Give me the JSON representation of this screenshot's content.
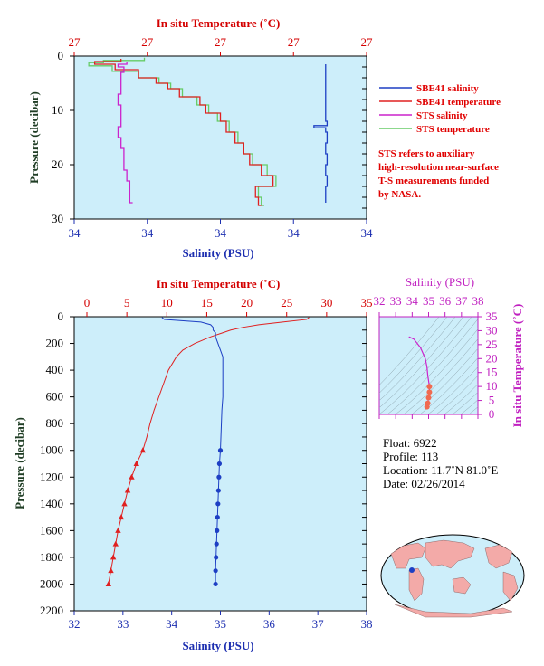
{
  "colors": {
    "plot_bg": "#cdeefa",
    "sbe_salinity": "#1d3fc4",
    "sbe_temperature": "#e02020",
    "sts_salinity": "#cc22cc",
    "sts_temperature": "#66cc66",
    "temp_axis": "#d40000",
    "sal_axis": "#1d2fb0",
    "pressure_axis": "#1f3d24",
    "ts_axis": "#c020c0"
  },
  "top_panel": {
    "temp_axis_label": "In situ Temperature (˚C)",
    "sal_axis_label": "Salinity (PSU)",
    "pressure_axis_label": "Pressure (decibar)",
    "temp_ticks": [
      "27",
      "27",
      "27",
      "27",
      "27"
    ],
    "sal_ticks": [
      "34",
      "34",
      "34",
      "34",
      "34"
    ],
    "pressure_ticks": [
      "0",
      "10",
      "20",
      "30"
    ],
    "legend": [
      {
        "label": "SBE41 salinity",
        "color": "#1d3fc4"
      },
      {
        "label": "SBE41 temperature",
        "color": "#e02020"
      },
      {
        "label": "STS salinity",
        "color": "#cc22cc"
      },
      {
        "label": "STS temperature",
        "color": "#66cc66"
      }
    ],
    "note_lines": [
      "STS refers to auxiliary",
      "high-resolution near-surface",
      "T-S measurements funded",
      "by NASA."
    ]
  },
  "bottom_panel": {
    "temp_axis_label": "In situ Temperature (˚C)",
    "sal_axis_label": "Salinity (PSU)",
    "pressure_axis_label": "Pressure (decibar)",
    "temp_ticks": [
      "0",
      "5",
      "10",
      "15",
      "20",
      "25",
      "30",
      "35"
    ],
    "sal_ticks": [
      "32",
      "33",
      "34",
      "35",
      "36",
      "37",
      "38"
    ],
    "pressure_ticks": [
      "0",
      "200",
      "400",
      "600",
      "800",
      "1000",
      "1200",
      "1400",
      "1600",
      "1800",
      "2000",
      "2200"
    ]
  },
  "ts_panel": {
    "sal_axis_label": "Salinity (PSU)",
    "temp_axis_label": "In situ Temperature (˚C)",
    "sal_ticks": [
      "32",
      "33",
      "34",
      "35",
      "36",
      "37",
      "38"
    ],
    "temp_ticks": [
      "0",
      "5",
      "10",
      "15",
      "20",
      "25",
      "30",
      "35"
    ]
  },
  "float_info": {
    "float": "Float:  6922",
    "profile": "Profile:  113",
    "location": "Location:  11.7˚N  81.0˚E",
    "date": "Date:  02/26/2014"
  },
  "chart_data": [
    {
      "type": "line",
      "panel": "near-surface profile",
      "xlabel_top": "In situ Temperature (˚C)",
      "xlabel_bottom": "Salinity (PSU)",
      "ylabel": "Pressure (decibar)",
      "ylim": [
        30,
        0
      ],
      "series": [
        {
          "name": "SBE41 salinity",
          "pressure": [
            1.5,
            4,
            6,
            8,
            10,
            12,
            12.8,
            13.2,
            14,
            16,
            18,
            20,
            22,
            24,
            26,
            27
          ],
          "frac": [
            0.86,
            0.86,
            0.86,
            0.86,
            0.86,
            0.865,
            0.82,
            0.86,
            0.865,
            0.86,
            0.865,
            0.86,
            0.865,
            0.86,
            0.86,
            0.86
          ]
        },
        {
          "name": "SBE41 temperature",
          "pressure": [
            0.5,
            1.0,
            1.5,
            2.5,
            4.0,
            5.0,
            6.0,
            7.5,
            9.0,
            10.5,
            12.0,
            14.0,
            16.0,
            18.0,
            20.0,
            22.0,
            24.0,
            26.0,
            27.5
          ],
          "frac": [
            0.16,
            0.07,
            0.14,
            0.22,
            0.28,
            0.32,
            0.36,
            0.43,
            0.45,
            0.5,
            0.52,
            0.55,
            0.58,
            0.6,
            0.64,
            0.68,
            0.62,
            0.63,
            0.64
          ]
        },
        {
          "name": "STS salinity",
          "pressure": [
            1.0,
            1.5,
            2.0,
            3.0,
            5.0,
            7.0,
            9.0,
            11.0,
            13.0,
            15.0,
            17.0,
            19.0,
            21.0,
            23.0,
            25.0,
            27.0
          ],
          "frac": [
            0.18,
            0.15,
            0.17,
            0.16,
            0.16,
            0.15,
            0.16,
            0.16,
            0.15,
            0.16,
            0.17,
            0.17,
            0.18,
            0.19,
            0.19,
            0.2
          ]
        },
        {
          "name": "STS temperature",
          "pressure": [
            0.3,
            0.8,
            1.2,
            1.8,
            2.8,
            4.0,
            5.0,
            6.0,
            7.5,
            9.0,
            10.5,
            12.0,
            14.0,
            16.0,
            18.0,
            20.0,
            22.0,
            24.0,
            26.0,
            27.5
          ],
          "frac": [
            0.24,
            0.1,
            0.05,
            0.13,
            0.22,
            0.29,
            0.33,
            0.37,
            0.42,
            0.46,
            0.49,
            0.53,
            0.56,
            0.58,
            0.61,
            0.66,
            0.69,
            0.63,
            0.64,
            0.65
          ]
        }
      ]
    },
    {
      "type": "line",
      "panel": "full-depth profile",
      "xlabel_top": "In situ Temperature (˚C)",
      "xlabel_bottom": "Salinity (PSU)",
      "ylabel": "Pressure (decibar)",
      "xlim_temperature": [
        0,
        35
      ],
      "xlim_salinity": [
        32,
        38
      ],
      "ylim": [
        2200,
        0
      ],
      "series": [
        {
          "name": "In situ temperature",
          "pressure": [
            5,
            20,
            40,
            60,
            80,
            100,
            120,
            150,
            200,
            250,
            300,
            400,
            500,
            600,
            700,
            800,
            900,
            1000,
            1100,
            1200,
            1300,
            1400,
            1500,
            1600,
            1700,
            1800,
            1900,
            2000
          ],
          "values": [
            27.8,
            27.5,
            24.5,
            21.5,
            19.5,
            18.0,
            17.0,
            15.5,
            13.5,
            12.0,
            11.2,
            10.2,
            9.6,
            9.0,
            8.4,
            7.9,
            7.5,
            7.0,
            6.2,
            5.6,
            5.1,
            4.7,
            4.3,
            3.9,
            3.6,
            3.3,
            3.0,
            2.7
          ]
        },
        {
          "name": "Salinity",
          "pressure": [
            5,
            20,
            40,
            60,
            80,
            100,
            120,
            150,
            200,
            250,
            300,
            400,
            500,
            600,
            700,
            800,
            900,
            1000,
            1100,
            1200,
            1300,
            1400,
            1500,
            1600,
            1700,
            1800,
            1900,
            2000
          ],
          "values": [
            33.8,
            33.85,
            34.6,
            34.8,
            34.85,
            34.85,
            34.9,
            34.9,
            34.95,
            35.0,
            35.05,
            35.05,
            35.05,
            35.05,
            35.03,
            35.02,
            35.01,
            35.0,
            34.98,
            34.97,
            34.96,
            34.95,
            34.94,
            34.93,
            34.92,
            34.91,
            34.9,
            34.9
          ]
        }
      ]
    },
    {
      "type": "scatter",
      "panel": "T-S diagram",
      "xlabel": "Salinity (PSU)",
      "ylabel": "In situ Temperature (˚C)",
      "xlim": [
        32,
        38
      ],
      "ylim": [
        0,
        35
      ],
      "series": [
        {
          "name": "T-S",
          "salinity": [
            33.8,
            34.1,
            34.5,
            34.8,
            34.9,
            34.95,
            35.0,
            35.05,
            35.05,
            35.0,
            34.95,
            34.9
          ],
          "temperature": [
            27.8,
            27.0,
            24.0,
            20.0,
            17.0,
            14.0,
            12.0,
            10.0,
            8.0,
            6.0,
            4.0,
            2.7
          ]
        }
      ]
    }
  ]
}
